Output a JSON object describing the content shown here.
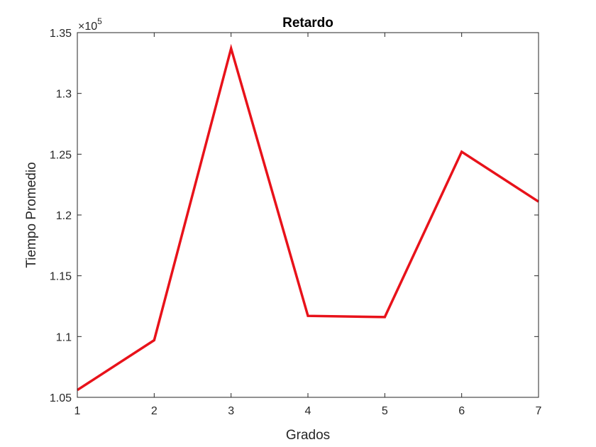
{
  "chart_data": {
    "type": "line",
    "title": "Retardo",
    "xlabel": "Grados",
    "ylabel": "Tiempo Promedio",
    "y_exponent_label": {
      "base": "×10",
      "power": "5"
    },
    "x": [
      1,
      2,
      3,
      4,
      5,
      6,
      7
    ],
    "series": [
      {
        "values": [
          1.056,
          1.097,
          1.337,
          1.117,
          1.116,
          1.252,
          1.211
        ],
        "color": "#e8121a"
      }
    ],
    "xlim": [
      1,
      7
    ],
    "ylim": [
      1.05,
      1.35
    ],
    "xticks": [
      "1",
      "2",
      "3",
      "4",
      "5",
      "6",
      "7"
    ],
    "yticks": [
      "1.05",
      "1.1",
      "1.15",
      "1.2",
      "1.25",
      "1.3",
      "1.35"
    ],
    "grid": false,
    "legend": "none"
  }
}
